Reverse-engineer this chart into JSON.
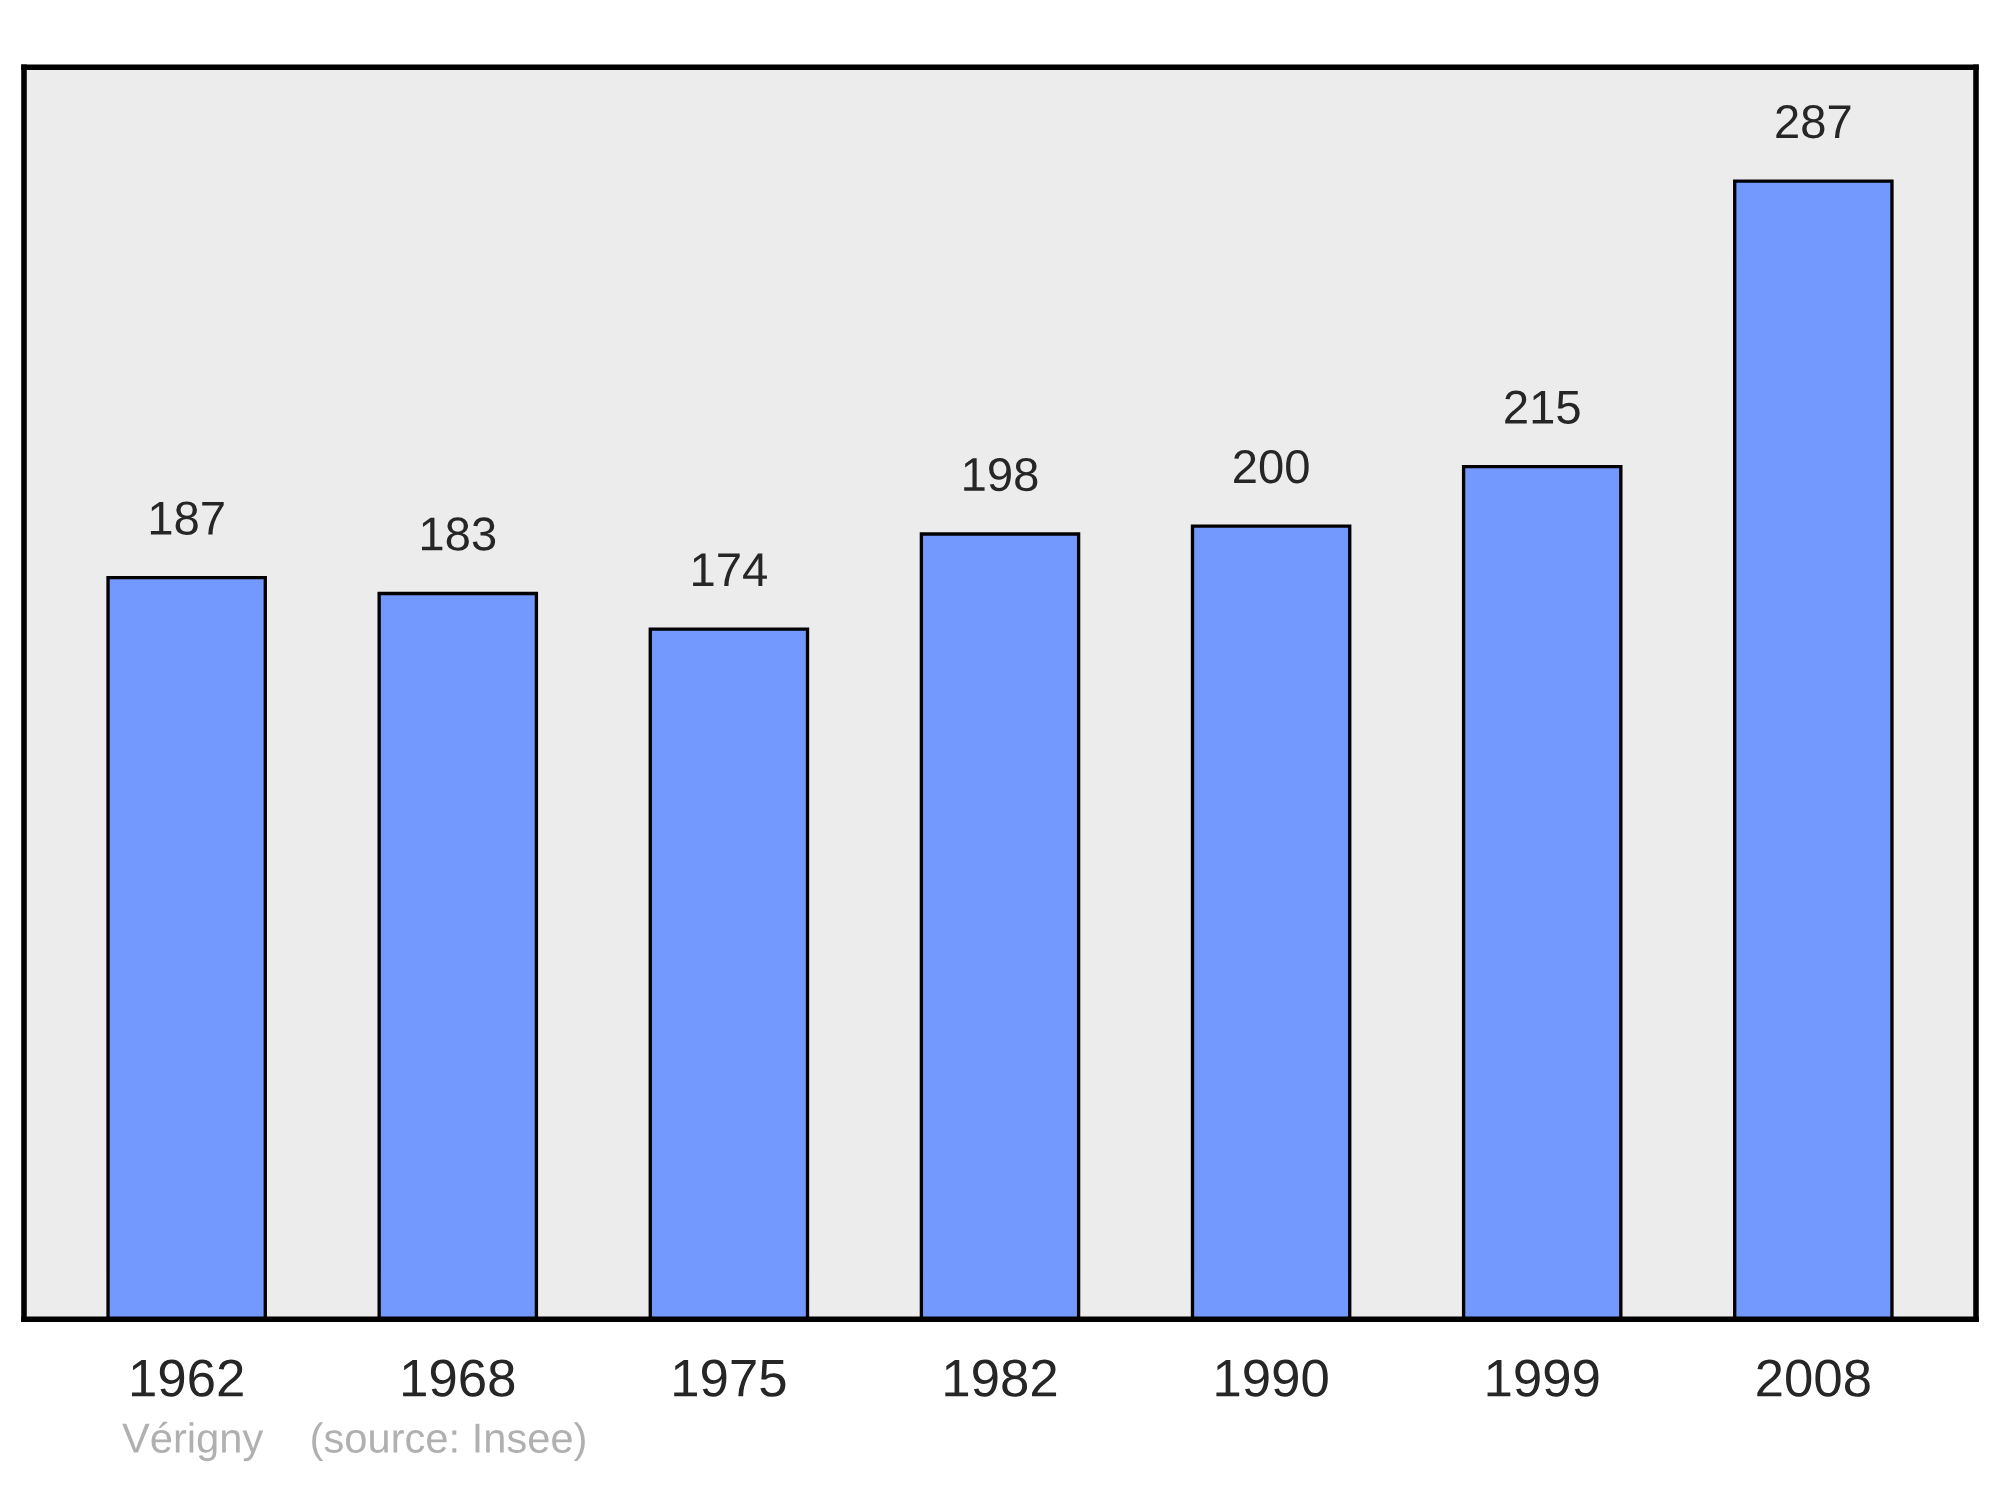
{
  "chart_data": {
    "type": "bar",
    "categories": [
      "1962",
      "1968",
      "1975",
      "1982",
      "1990",
      "1999",
      "2008"
    ],
    "values": [
      187,
      183,
      174,
      198,
      200,
      215,
      287
    ],
    "color": "#7399ff",
    "data_labels": true,
    "grid": false,
    "annotations": [
      "Vérigny    (source: Insee)"
    ]
  }
}
